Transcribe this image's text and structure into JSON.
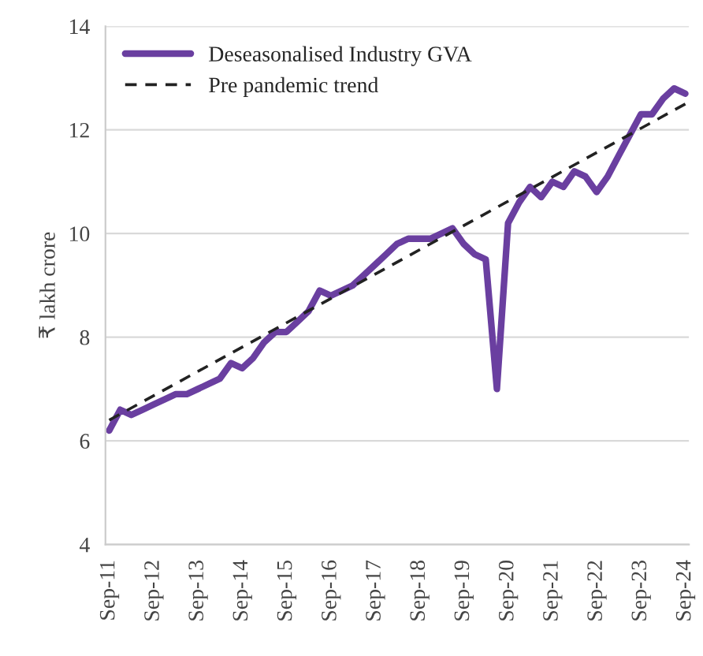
{
  "chart_data": {
    "type": "line",
    "ylabel": "₹ lakh crore",
    "x": [
      "2011-09",
      "2011-12",
      "2012-03",
      "2012-06",
      "2012-09",
      "2012-12",
      "2013-03",
      "2013-06",
      "2013-09",
      "2013-12",
      "2014-03",
      "2014-06",
      "2014-09",
      "2014-12",
      "2015-03",
      "2015-06",
      "2015-09",
      "2015-12",
      "2016-03",
      "2016-06",
      "2016-09",
      "2016-12",
      "2017-03",
      "2017-06",
      "2017-09",
      "2017-12",
      "2018-03",
      "2018-06",
      "2018-09",
      "2018-12",
      "2019-03",
      "2019-06",
      "2019-09",
      "2019-12",
      "2020-03",
      "2020-06",
      "2020-09",
      "2020-12",
      "2021-03",
      "2021-06",
      "2021-09",
      "2021-12",
      "2022-03",
      "2022-06",
      "2022-09",
      "2022-12",
      "2023-03",
      "2023-06",
      "2023-09",
      "2023-12",
      "2024-03",
      "2024-06",
      "2024-09"
    ],
    "series": [
      {
        "name": "Deseasonalised Industry GVA",
        "color": "#6a3fa0",
        "line_style": "solid",
        "values": [
          6.2,
          6.6,
          6.5,
          6.6,
          6.7,
          6.8,
          6.9,
          6.9,
          7.0,
          7.1,
          7.2,
          7.5,
          7.4,
          7.6,
          7.9,
          8.1,
          8.1,
          8.3,
          8.5,
          8.9,
          8.8,
          8.9,
          9.0,
          9.2,
          9.4,
          9.6,
          9.8,
          9.9,
          9.9,
          9.9,
          10.0,
          10.1,
          9.8,
          9.6,
          9.5,
          7.0,
          10.2,
          10.6,
          10.9,
          10.7,
          11.0,
          10.9,
          11.2,
          11.1,
          10.8,
          11.1,
          11.5,
          11.9,
          12.3,
          12.3,
          12.6,
          12.8,
          12.7
        ]
      },
      {
        "name": "Pre pandemic trend",
        "color": "#222222",
        "line_style": "dashed",
        "x": [
          "2011-09",
          "2024-09"
        ],
        "values": [
          6.4,
          12.5
        ]
      }
    ],
    "ylim": [
      4,
      14
    ],
    "yticks": [
      4,
      6,
      8,
      10,
      12,
      14
    ],
    "xlim": [
      "2011-08",
      "2024-10"
    ],
    "xticks": [
      {
        "value": "2011-09",
        "label": "Sep-11"
      },
      {
        "value": "2012-09",
        "label": "Sep-12"
      },
      {
        "value": "2013-09",
        "label": "Sep-13"
      },
      {
        "value": "2014-09",
        "label": "Sep-14"
      },
      {
        "value": "2015-09",
        "label": "Sep-15"
      },
      {
        "value": "2016-09",
        "label": "Sep-16"
      },
      {
        "value": "2017-09",
        "label": "Sep-17"
      },
      {
        "value": "2018-09",
        "label": "Sep-18"
      },
      {
        "value": "2019-09",
        "label": "Sep-19"
      },
      {
        "value": "2020-09",
        "label": "Sep-20"
      },
      {
        "value": "2021-09",
        "label": "Sep-21"
      },
      {
        "value": "2022-09",
        "label": "Sep-22"
      },
      {
        "value": "2023-09",
        "label": "Sep-23"
      },
      {
        "value": "2024-09",
        "label": "Sep-24"
      }
    ],
    "grid": "y",
    "legend": "top left",
    "marker": "none"
  }
}
